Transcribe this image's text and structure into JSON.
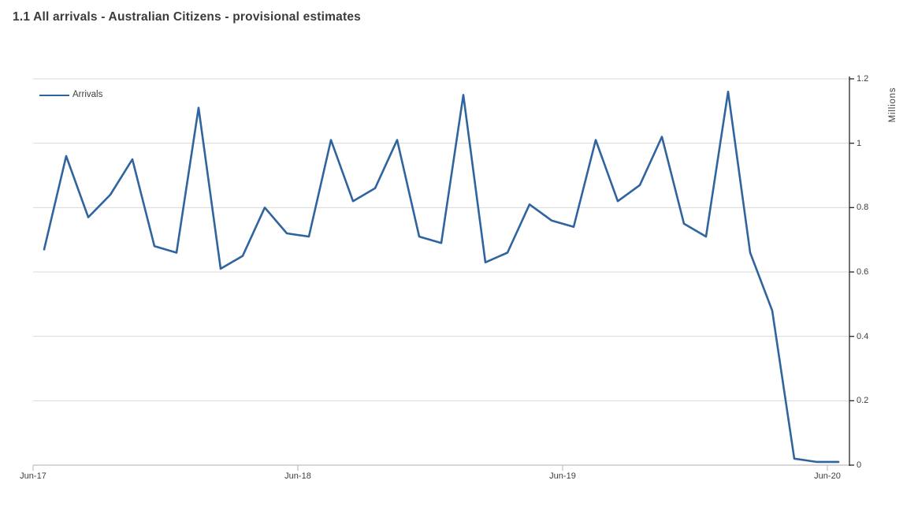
{
  "title": "1.1 All arrivals - Australian Citizens - provisional estimates",
  "legend": {
    "label": "Arrivals"
  },
  "colors": {
    "line": "#2f649e",
    "gridline": "#d9d9d9",
    "x_axis": "#bfbfbf",
    "y_axis": "#262626",
    "tick_text": "#404040",
    "title_text": "#3b3b3b"
  },
  "chart_data": {
    "type": "line",
    "title": "1.1 All arrivals - Australian Citizens - provisional estimates",
    "xlabel": "",
    "ylabel": "Millions",
    "ylim": [
      0,
      1.2
    ],
    "grid": "horizontal",
    "legend_position": "top-left",
    "y_ticks": [
      0,
      0.2,
      0.4,
      0.6,
      0.8,
      1,
      1.2
    ],
    "y_tick_labels": [
      "0",
      "0.2",
      "0.4",
      "0.6",
      "0.8",
      "1",
      "1.2"
    ],
    "x_tick_labels": [
      "Jun-17",
      "Jun-18",
      "Jun-19",
      "Jun-20"
    ],
    "x_tick_every": 12,
    "categories": [
      "Jun-17",
      "Jul-17",
      "Aug-17",
      "Sep-17",
      "Oct-17",
      "Nov-17",
      "Dec-17",
      "Jan-18",
      "Feb-18",
      "Mar-18",
      "Apr-18",
      "May-18",
      "Jun-18",
      "Jul-18",
      "Aug-18",
      "Sep-18",
      "Oct-18",
      "Nov-18",
      "Dec-18",
      "Jan-19",
      "Feb-19",
      "Mar-19",
      "Apr-19",
      "May-19",
      "Jun-19",
      "Jul-19",
      "Aug-19",
      "Sep-19",
      "Oct-19",
      "Nov-19",
      "Dec-19",
      "Jan-20",
      "Feb-20",
      "Mar-20",
      "Apr-20",
      "May-20",
      "Jun-20"
    ],
    "series": [
      {
        "name": "Arrivals",
        "values": [
          0.67,
          0.96,
          0.77,
          0.84,
          0.95,
          0.68,
          0.66,
          1.11,
          0.61,
          0.65,
          0.8,
          0.72,
          0.71,
          1.01,
          0.82,
          0.86,
          1.01,
          0.71,
          0.69,
          1.15,
          0.63,
          0.66,
          0.81,
          0.76,
          0.74,
          1.01,
          0.82,
          0.87,
          1.02,
          0.75,
          0.71,
          1.16,
          0.66,
          0.48,
          0.02,
          0.01,
          0.01
        ]
      }
    ]
  }
}
